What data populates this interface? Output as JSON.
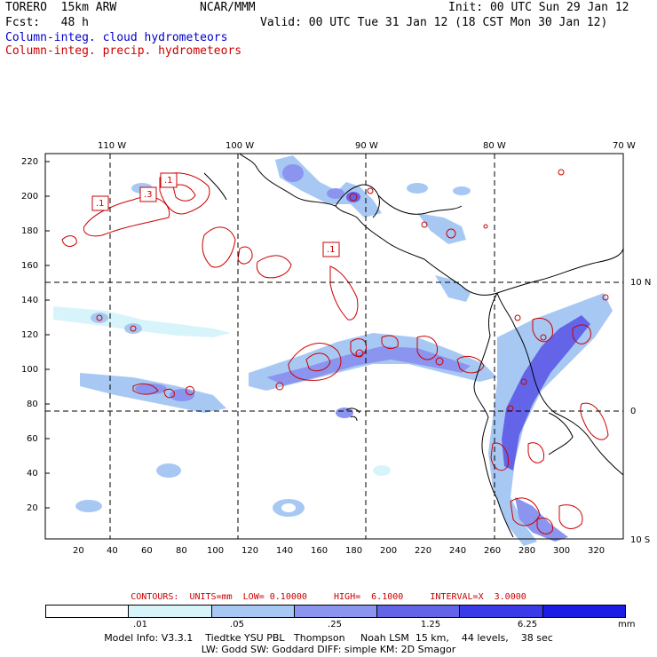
{
  "header": {
    "model": "TORERO  15km ARW",
    "org": "NCAR/MMM",
    "init": "Init: 00 UTC Sun 29 Jan 12",
    "fcst": "Fcst:   48 h",
    "valid": "Valid: 00 UTC Tue 31 Jan 12 (18 CST Mon 30 Jan 12)",
    "field1": "Column-integ. cloud hydrometeors",
    "field2": "Column-integ. precip. hydrometeors"
  },
  "colors": {
    "field1": "#0000cc",
    "field2": "#cc0000",
    "land_outline": "#000000",
    "grid": "#000000"
  },
  "map": {
    "top_lon_labels": [
      "110 W",
      "100 W",
      "90 W",
      "80 W",
      "70 W"
    ],
    "right_lat_labels": [
      "10 N",
      "0",
      "10 S"
    ],
    "y_ticks": [
      "220",
      "200",
      "180",
      "160",
      "140",
      "120",
      "100",
      "80",
      "60",
      "40",
      "20"
    ],
    "x_ticks": [
      "20",
      "40",
      "60",
      "80",
      "100",
      "120",
      "140",
      "160",
      "180",
      "200",
      "220",
      "240",
      "260",
      "280",
      "300",
      "320"
    ],
    "contour_labels": [
      ".1",
      ".3",
      ".1",
      ".1"
    ]
  },
  "contours_line": "CONTOURS:  UNITS=mm  LOW= 0.10000     HIGH=  6.1000     INTERVAL=X  3.0000",
  "colorbar": {
    "colors": [
      "#ffffff",
      "#d8f4fb",
      "#a8c8f4",
      "#8b94ee",
      "#6464e8",
      "#3a3ae8",
      "#1c1ce6"
    ],
    "labels": [
      ".01",
      ".05",
      ".25",
      "1.25",
      "6.25"
    ],
    "units": "mm"
  },
  "model_info": {
    "line1": "Model Info: V3.3.1    Tiedtke YSU PBL   Thompson     Noah LSM  15 km,    44 levels,    38 sec",
    "line2": "LW: Godd SW: Goddard DIFF: simple KM: 2D Smagor"
  }
}
